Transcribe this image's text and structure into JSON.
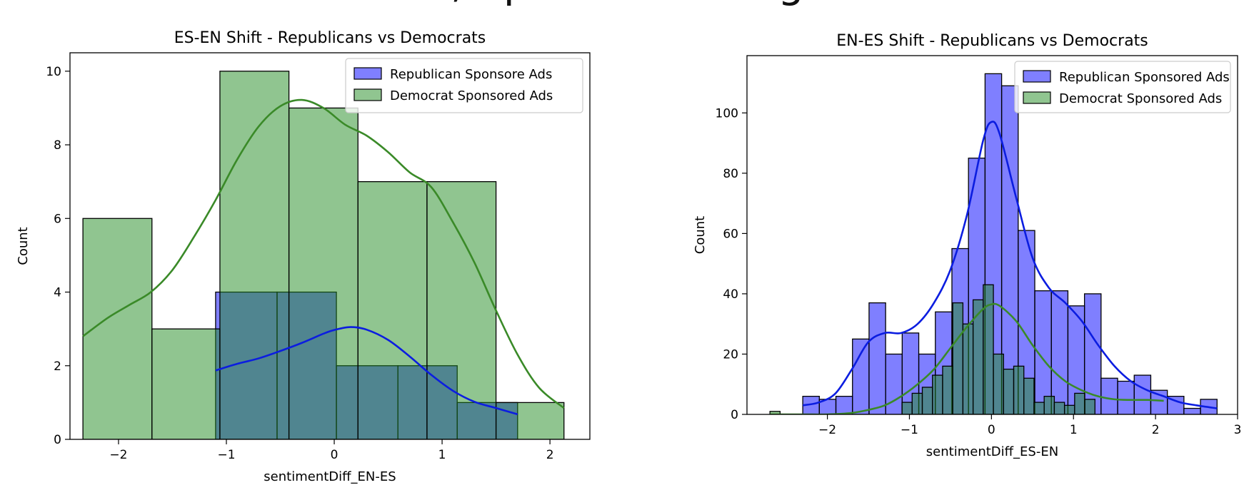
{
  "banner_text": "n, Sponsor and Age",
  "colors": {
    "republican": "#0000ff",
    "democrat": "#228b22",
    "republican_line": "#0b1de0",
    "democrat_line": "#3a8a28"
  },
  "chart_data": [
    {
      "type": "histogram",
      "title": "ES-EN Shift - Republicans vs Democrats",
      "xlabel": "sentimentDiff_EN-ES",
      "ylabel": "Count",
      "xlim": [
        -2.45,
        2.37
      ],
      "ylim": [
        0,
        10.5
      ],
      "xticks": [
        -2,
        -1,
        0,
        1,
        2
      ],
      "yticks": [
        0,
        2,
        4,
        6,
        8,
        10
      ],
      "xtick_labels": [
        "−2",
        "−1",
        "0",
        "1",
        "2"
      ],
      "ytick_labels": [
        "0",
        "2",
        "4",
        "6",
        "8",
        "10"
      ],
      "legend_position": "upper right",
      "grid": false,
      "series": [
        {
          "name": "Republican Sponsore Ads",
          "color_key": "republican",
          "bins": [
            {
              "x0": -1.1,
              "x1": -0.53,
              "count": 4
            },
            {
              "x0": -0.53,
              "x1": 0.02,
              "count": 4
            },
            {
              "x0": 0.02,
              "x1": 0.59,
              "count": 2
            },
            {
              "x0": 0.59,
              "x1": 1.14,
              "count": 2
            },
            {
              "x0": 1.14,
              "x1": 1.7,
              "count": 1
            }
          ],
          "kde": {
            "x": [
              -1.1,
              -0.9,
              -0.7,
              -0.5,
              -0.3,
              -0.1,
              0.0,
              0.15,
              0.3,
              0.5,
              0.7,
              0.9,
              1.1,
              1.3,
              1.5,
              1.7
            ],
            "y": [
              1.87,
              2.05,
              2.2,
              2.4,
              2.62,
              2.87,
              2.97,
              3.05,
              2.98,
              2.7,
              2.25,
              1.75,
              1.32,
              1.02,
              0.85,
              0.68
            ]
          }
        },
        {
          "name": "Democrat Sponsored Ads",
          "color_key": "democrat",
          "bins": [
            {
              "x0": -2.33,
              "x1": -1.69,
              "count": 6
            },
            {
              "x0": -1.69,
              "x1": -1.06,
              "count": 3
            },
            {
              "x0": -1.06,
              "x1": -0.42,
              "count": 10
            },
            {
              "x0": -0.42,
              "x1": 0.22,
              "count": 9
            },
            {
              "x0": 0.22,
              "x1": 0.86,
              "count": 7
            },
            {
              "x0": 0.86,
              "x1": 1.5,
              "count": 7
            },
            {
              "x0": 1.5,
              "x1": 2.13,
              "count": 1
            }
          ],
          "kde": {
            "x": [
              -2.33,
              -2.1,
              -1.9,
              -1.7,
              -1.5,
              -1.3,
              -1.1,
              -0.9,
              -0.7,
              -0.5,
              -0.3,
              -0.1,
              0.1,
              0.3,
              0.5,
              0.7,
              0.9,
              1.1,
              1.3,
              1.5,
              1.7,
              1.9,
              2.13
            ],
            "y": [
              2.8,
              3.3,
              3.65,
              4.0,
              4.6,
              5.5,
              6.5,
              7.6,
              8.5,
              9.05,
              9.22,
              9.0,
              8.55,
              8.25,
              7.8,
              7.25,
              6.85,
              5.9,
              4.8,
              3.5,
              2.3,
              1.4,
              0.85
            ]
          }
        }
      ]
    },
    {
      "type": "histogram",
      "title": "EN-ES Shift - Republicans vs Democrats",
      "xlabel": "sentimentDiff_ES-EN",
      "ylabel": "Count",
      "xlim": [
        -2.98,
        3.0
      ],
      "ylim": [
        0,
        119
      ],
      "xticks": [
        -2,
        -1,
        0,
        1,
        2,
        3
      ],
      "yticks": [
        0,
        20,
        40,
        60,
        80,
        100
      ],
      "xtick_labels": [
        "−2",
        "−1",
        "0",
        "1",
        "2",
        "3"
      ],
      "ytick_labels": [
        "0",
        "20",
        "40",
        "60",
        "80",
        "100"
      ],
      "legend_position": "upper right",
      "grid": false,
      "series": [
        {
          "name": "Republican Sponsored Ads",
          "color_key": "republican",
          "bin_start": -2.3,
          "bin_width": 0.202,
          "counts": [
            6,
            5,
            6,
            25,
            37,
            20,
            27,
            20,
            34,
            55,
            85,
            113,
            109,
            61,
            41,
            41,
            36,
            40,
            12,
            11,
            13,
            8,
            6,
            2,
            5
          ],
          "kde": {
            "x": [
              -2.3,
              -2.1,
              -1.9,
              -1.7,
              -1.5,
              -1.3,
              -1.1,
              -0.9,
              -0.7,
              -0.5,
              -0.3,
              -0.1,
              0.0,
              0.1,
              0.3,
              0.5,
              0.7,
              0.9,
              1.1,
              1.3,
              1.5,
              1.7,
              1.9,
              2.1,
              2.3,
              2.5,
              2.75
            ],
            "y": [
              3,
              4,
              7,
              15,
              24,
              27,
              27,
              30,
              37,
              48,
              66,
              91,
              97,
              93,
              72,
              52,
              42,
              37,
              31,
              23,
              16,
              11,
              8,
              6,
              4,
              3,
              2
            ]
          }
        },
        {
          "name": "Democrat Sponsored Ads",
          "color_key": "democrat",
          "bin_start": -2.7,
          "bin_width": 0.1238,
          "counts": [
            1,
            0,
            0,
            0,
            0,
            0,
            0,
            0,
            0,
            0,
            0,
            0,
            0,
            4,
            7,
            9,
            13,
            16,
            37,
            30,
            38,
            43,
            20,
            15,
            16,
            12,
            4,
            6,
            4,
            3,
            7,
            5
          ],
          "kde": {
            "x": [
              -2.7,
              -2.3,
              -2.0,
              -1.7,
              -1.5,
              -1.3,
              -1.1,
              -0.9,
              -0.7,
              -0.5,
              -0.3,
              -0.1,
              0.0,
              0.1,
              0.3,
              0.5,
              0.7,
              0.9,
              1.1,
              1.3,
              1.5,
              1.7,
              1.9,
              2.1
            ],
            "y": [
              0,
              0,
              0,
              0.5,
              1.5,
              3,
              6,
              10,
              15,
              22,
              29,
              35,
              36.5,
              36,
              31,
              23,
              16,
              11,
              8,
              6,
              5,
              4.8,
              4.8,
              4.5
            ]
          }
        }
      ]
    }
  ]
}
